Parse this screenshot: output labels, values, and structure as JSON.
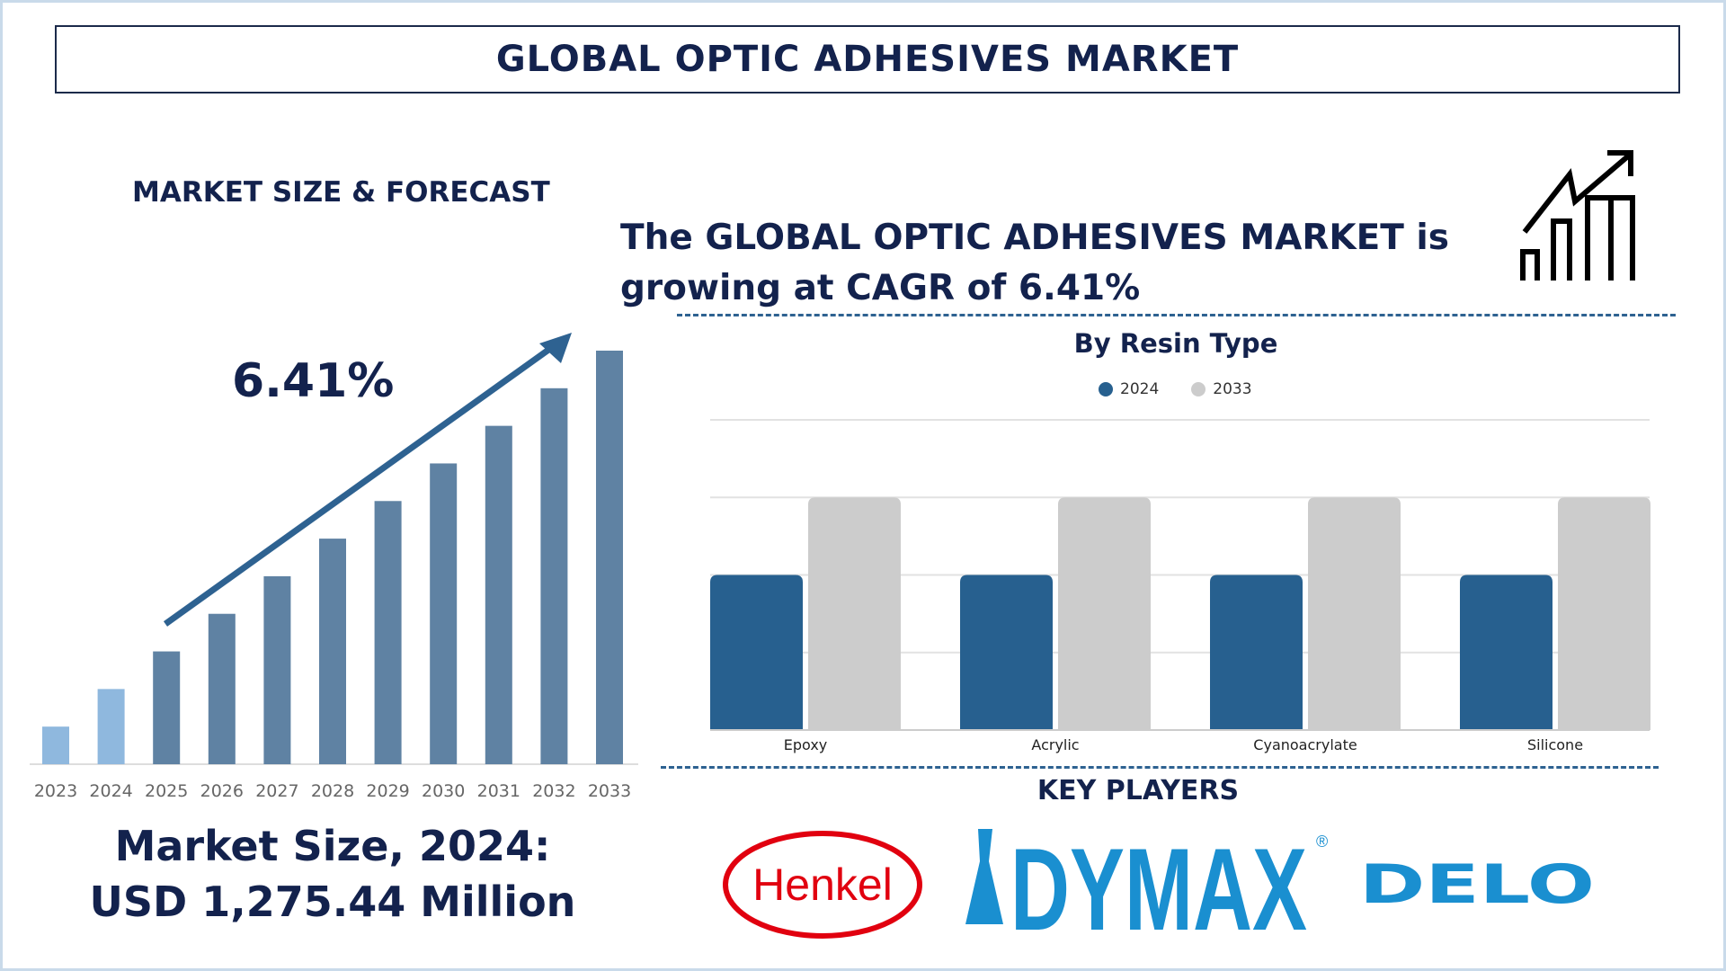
{
  "title": "GLOBAL OPTIC ADHESIVES MARKET",
  "left": {
    "section_title": "MARKET SIZE & FORECAST",
    "cagr_label": "6.41%",
    "market_size_line1": "Market Size, 2024:",
    "market_size_line2": "USD 1,275.44 Million"
  },
  "headline": {
    "line1": "The GLOBAL OPTIC ADHESIVES MARKET is",
    "line2": "growing at CAGR of 6.41%",
    "icon": "growth-chart-icon"
  },
  "key_players": {
    "title": "KEY PLAYERS",
    "logos": [
      "Henkel",
      "DYMAX",
      "DELO"
    ]
  },
  "colors": {
    "navy": "#13224d",
    "bar_light": "#8fb8de",
    "bar_dark": "#5f82a3",
    "series_2024": "#27608f",
    "series_2033": "#cccccc",
    "arrow": "#2e6291"
  },
  "chart_data": [
    {
      "type": "bar",
      "title": "",
      "categories": [
        "2023",
        "2024",
        "2025",
        "2026",
        "2027",
        "2028",
        "2029",
        "2030",
        "2031",
        "2032",
        "2033"
      ],
      "values": [
        1,
        2,
        3,
        4,
        5,
        6,
        7,
        8,
        9,
        10,
        11
      ],
      "value_axis": "none (relative heights)",
      "grid": false,
      "annotation": "6.41%"
    },
    {
      "type": "bar",
      "title": "By Resin Type",
      "categories": [
        "Epoxy",
        "Acrylic",
        "Cyanoacrylate",
        "Silicone"
      ],
      "series": [
        {
          "name": "2024",
          "values": [
            2,
            2,
            2,
            2
          ]
        },
        {
          "name": "2033",
          "values": [
            3,
            3,
            3,
            3
          ]
        }
      ],
      "ylim": [
        0,
        4
      ],
      "value_axis": "no tick labels (gridline units)",
      "grid": true,
      "legend": "top-center"
    }
  ]
}
